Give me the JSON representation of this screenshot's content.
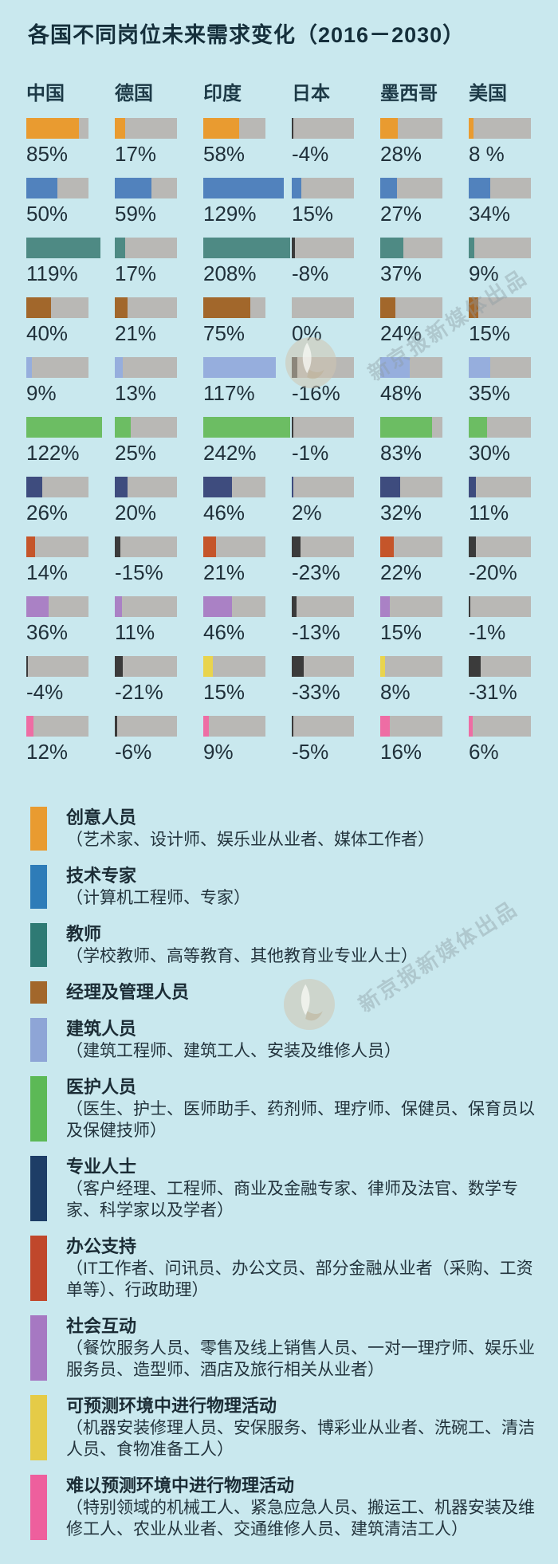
{
  "title": "各国不同岗位未来需求变化（2016－2030）",
  "watermark": {
    "text": "新京报新媒体出品"
  },
  "colors": {
    "background": "#c9e8ee",
    "bar_track": "#b9b8b5",
    "negative_mark": "#3b3b3b",
    "text": "#20303a"
  },
  "chart_data": {
    "type": "bar",
    "title": "各国不同岗位未来需求变化（2016－2030）",
    "unit": "%",
    "layout": "6 country columns × 11 job-category rows; each cell is a horizontal 100%-track bar; values over 100% extend the bar; negative values shown as a dark mark at left",
    "categories": [
      "中国",
      "德国",
      "印度",
      "日本",
      "墨西哥",
      "美国"
    ],
    "series": [
      {
        "name": "创意人员",
        "color": "#e99b30",
        "values": [
          85,
          17,
          58,
          -4,
          28,
          8
        ],
        "labels": [
          "85%",
          "17%",
          "58%",
          "-4%",
          "28%",
          "8 %"
        ]
      },
      {
        "name": "技术专家",
        "color": "#5182bd",
        "values": [
          50,
          59,
          129,
          15,
          27,
          34
        ],
        "labels": [
          "50%",
          "59%",
          "129%",
          "15%",
          "27%",
          "34%"
        ]
      },
      {
        "name": "教师",
        "color": "#4e8a84",
        "values": [
          119,
          17,
          208,
          -8,
          37,
          9
        ],
        "labels": [
          "119%",
          "17%",
          "208%",
          "-8%",
          "37%",
          "9%"
        ]
      },
      {
        "name": "经理及管理人员",
        "color": "#a2672b",
        "values": [
          40,
          21,
          75,
          0,
          24,
          15
        ],
        "labels": [
          "40%",
          "21%",
          "75%",
          "0%",
          "24%",
          "15%"
        ]
      },
      {
        "name": "建筑人员",
        "color": "#96aedd",
        "values": [
          9,
          13,
          117,
          -16,
          48,
          35
        ],
        "labels": [
          "9%",
          "13%",
          "117%",
          "-16%",
          "48%",
          "35%"
        ]
      },
      {
        "name": "医护人员",
        "color": "#6cbd63",
        "values": [
          122,
          25,
          242,
          -1,
          83,
          30
        ],
        "labels": [
          "122%",
          "25%",
          "242%",
          "-1%",
          "83%",
          "30%"
        ]
      },
      {
        "name": "专业人士",
        "color": "#3e4c7e",
        "values": [
          26,
          20,
          46,
          2,
          32,
          11
        ],
        "labels": [
          "26%",
          "20%",
          "46%",
          "2%",
          "32%",
          "11%"
        ]
      },
      {
        "name": "办公支持",
        "color": "#c5552a",
        "values": [
          14,
          -15,
          21,
          -23,
          22,
          -20
        ],
        "labels": [
          "14%",
          "-15%",
          "21%",
          "-23%",
          "22%",
          "-20%"
        ]
      },
      {
        "name": "社会互动",
        "color": "#aa81c5",
        "values": [
          36,
          11,
          46,
          -13,
          15,
          -1
        ],
        "labels": [
          "36%",
          "11%",
          "46%",
          "-13%",
          "15%",
          "-1%"
        ]
      },
      {
        "name": "可预测环境中进行物理活动",
        "color": "#e9d44d",
        "values": [
          -4,
          -21,
          15,
          -33,
          8,
          -31
        ],
        "labels": [
          "-4%",
          "-21%",
          "15%",
          "-33%",
          "8%",
          "-31%"
        ]
      },
      {
        "name": "难以预测环境中进行物理活动",
        "color": "#ee6da4",
        "values": [
          12,
          -6,
          9,
          -5,
          16,
          6
        ],
        "labels": [
          "12%",
          "-6%",
          "9%",
          "-5%",
          "16%",
          "6%"
        ]
      }
    ]
  },
  "legend": {
    "items": [
      {
        "label": "创意人员",
        "desc": "（艺术家、设计师、娱乐业从业者、媒体工作者）",
        "color": "#e99b30"
      },
      {
        "label": "技术专家",
        "desc": "（计算机工程师、专家）",
        "color": "#2e7cb8"
      },
      {
        "label": "教师",
        "desc": "（学校教师、高等教育、其他教育业专业人士）",
        "color": "#2e7a74"
      },
      {
        "label": "经理及管理人员",
        "desc": "",
        "color": "#a2672b"
      },
      {
        "label": "建筑人员",
        "desc": "（建筑工程师、建筑工人、安装及维修人员）",
        "color": "#8ea5d6"
      },
      {
        "label": "医护人员",
        "desc": "（医生、护士、医师助手、药剂师、理疗师、保健员、保育员以及保健技师）",
        "color": "#5cb956"
      },
      {
        "label": "专业人士",
        "desc": "（客户经理、工程师、商业及金融专家、律师及法官、数学专家、科学家以及学者）",
        "color": "#1d3d66"
      },
      {
        "label": "办公支持",
        "desc": "（IT工作者、问讯员、办公文员、部分金融从业者（采购、工资单等）、行政助理）",
        "color": "#c0472b"
      },
      {
        "label": "社会互动",
        "desc": "（餐饮服务人员、零售及线上销售人员、一对一理疗师、娱乐业服务员、造型师、酒店及旅行相关从业者）",
        "color": "#a678c2"
      },
      {
        "label": "可预测环境中进行物理活动",
        "desc": "（机器安装修理人员、安保服务、博彩业从业者、洗碗工、清洁人员、食物准备工人）",
        "color": "#e5cb47"
      },
      {
        "label": "难以预测环境中进行物理活动",
        "desc": "（特别领域的机械工人、紧急应急人员、搬运工、机器安装及维修工人、农业从业者、交通维修人员、建筑清洁工人）",
        "color": "#ee5f9d"
      }
    ]
  }
}
